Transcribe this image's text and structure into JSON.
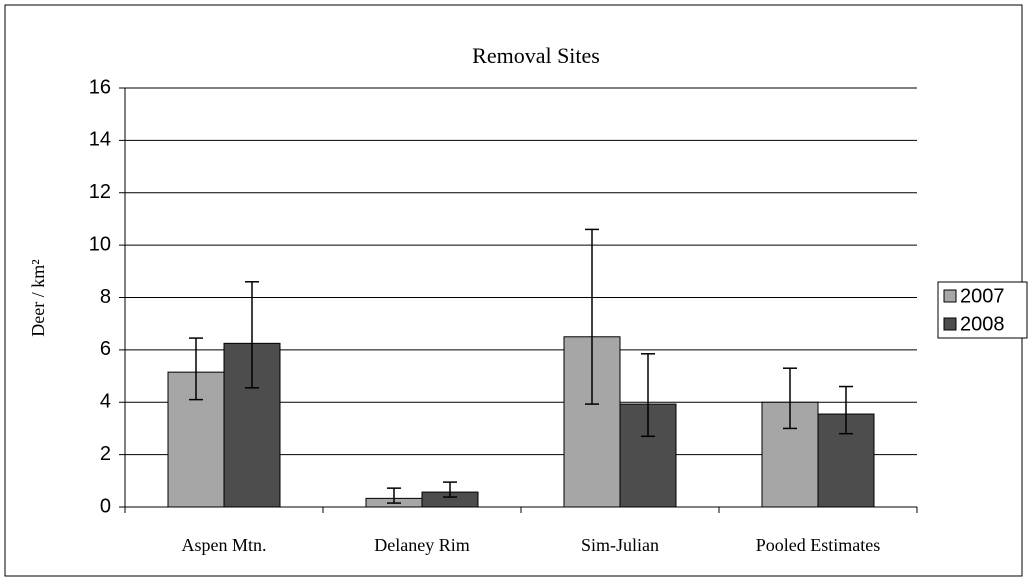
{
  "chart_data": {
    "type": "bar",
    "title": "Removal Sites",
    "y_label": "Deer / km²",
    "categories": [
      "Aspen Mtn.",
      "Delaney Rim",
      "Sim-Julian",
      "Pooled Estimates"
    ],
    "series": [
      {
        "name": "2007",
        "color": "#a6a6a6",
        "values": [
          5.15,
          0.33,
          6.5,
          4.0
        ],
        "lower": [
          4.1,
          0.15,
          3.93,
          3.0
        ],
        "upper": [
          6.45,
          0.72,
          10.6,
          5.3
        ]
      },
      {
        "name": "2008",
        "color": "#4d4d4d",
        "values": [
          6.25,
          0.57,
          3.93,
          3.55
        ],
        "lower": [
          4.55,
          0.38,
          2.7,
          2.8
        ],
        "upper": [
          8.6,
          0.95,
          5.85,
          4.6
        ]
      }
    ],
    "ylim": [
      0,
      16
    ],
    "yticks": [
      0,
      2,
      4,
      6,
      8,
      10,
      12,
      14,
      16
    ],
    "grid": true,
    "legend": "right"
  }
}
